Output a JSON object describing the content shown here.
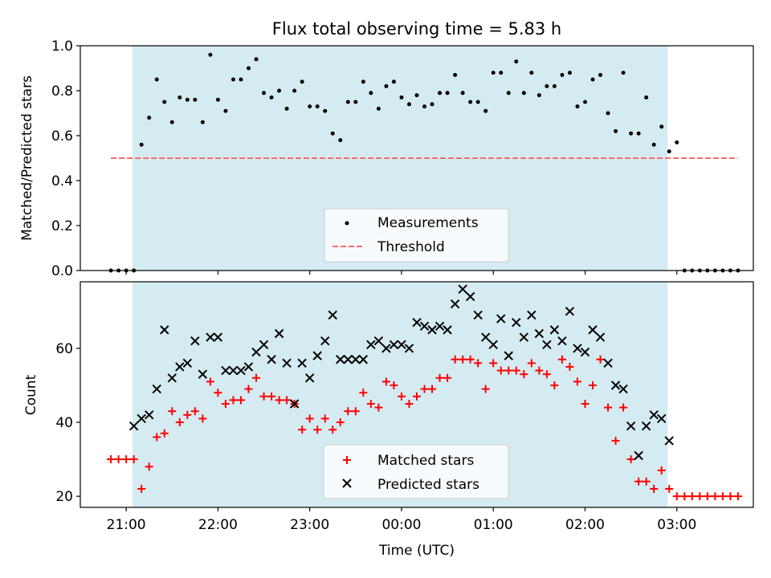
{
  "chart_data": [
    {
      "type": "scatter",
      "title": "Flux total observing time = 5.83 h",
      "ylabel": "Matched/Predicted stars",
      "xlabel": "",
      "xlim": [
        "20:30",
        "03:50"
      ],
      "ylim": [
        0,
        1.0
      ],
      "yticks": [
        "0.0",
        "0.2",
        "0.4",
        "0.6",
        "0.8",
        "1.0"
      ],
      "legend_position": "lower center",
      "observing_window": [
        "21:04",
        "02:54"
      ],
      "colors": {
        "window": "#add8e6",
        "threshold": "#ff6b6b",
        "points": "#000000"
      },
      "threshold": {
        "name": "Threshold",
        "value": 0.5,
        "x_range": [
          "20:50",
          "03:40"
        ]
      },
      "series": [
        {
          "name": "Measurements",
          "x": [
            "20:50",
            "20:55",
            "21:00",
            "21:05",
            "21:10",
            "21:15",
            "21:20",
            "21:25",
            "21:30",
            "21:35",
            "21:40",
            "21:45",
            "21:50",
            "21:55",
            "22:00",
            "22:05",
            "22:10",
            "22:15",
            "22:20",
            "22:25",
            "22:30",
            "22:35",
            "22:40",
            "22:45",
            "22:50",
            "22:55",
            "23:00",
            "23:05",
            "23:10",
            "23:15",
            "23:20",
            "23:25",
            "23:30",
            "23:35",
            "23:40",
            "23:45",
            "23:50",
            "23:55",
            "00:00",
            "00:05",
            "00:10",
            "00:15",
            "00:20",
            "00:25",
            "00:30",
            "00:35",
            "00:40",
            "00:45",
            "00:50",
            "00:55",
            "01:00",
            "01:05",
            "01:10",
            "01:15",
            "01:20",
            "01:25",
            "01:30",
            "01:35",
            "01:40",
            "01:45",
            "01:50",
            "01:55",
            "02:00",
            "02:05",
            "02:10",
            "02:15",
            "02:20",
            "02:25",
            "02:30",
            "02:35",
            "02:40",
            "02:45",
            "02:50",
            "02:55",
            "03:00",
            "03:05",
            "03:10",
            "03:15",
            "03:20",
            "03:25",
            "03:30",
            "03:35",
            "03:40"
          ],
          "y": [
            0,
            0,
            0,
            0,
            0.56,
            0.68,
            0.85,
            0.75,
            0.66,
            0.77,
            0.76,
            0.76,
            0.66,
            0.96,
            0.76,
            0.71,
            0.85,
            0.85,
            0.9,
            0.94,
            0.79,
            0.77,
            0.8,
            0.72,
            0.8,
            0.84,
            0.73,
            0.73,
            0.71,
            0.61,
            0.58,
            0.75,
            0.75,
            0.84,
            0.79,
            0.72,
            0.82,
            0.84,
            0.77,
            0.74,
            0.78,
            0.73,
            0.74,
            0.79,
            0.79,
            0.87,
            0.79,
            0.75,
            0.75,
            0.71,
            0.88,
            0.88,
            0.79,
            0.93,
            0.79,
            0.88,
            0.78,
            0.82,
            0.82,
            0.87,
            0.88,
            0.73,
            0.75,
            0.85,
            0.87,
            0.7,
            0.62,
            0.88,
            0.61,
            0.61,
            0.77,
            0.56,
            0.64,
            0.53,
            0.57,
            0,
            0,
            0,
            0,
            0,
            0,
            0,
            0
          ]
        }
      ]
    },
    {
      "type": "scatter",
      "title": "",
      "ylabel": "Count",
      "xlabel": "Time (UTC)",
      "xlim": [
        "20:30",
        "03:50"
      ],
      "ylim": [
        17,
        78
      ],
      "yticks": [
        "20",
        "40",
        "60"
      ],
      "xticks": [
        "21:00",
        "22:00",
        "23:00",
        "00:00",
        "01:00",
        "02:00",
        "03:00"
      ],
      "legend_position": "lower center",
      "observing_window": [
        "21:04",
        "02:54"
      ],
      "colors": {
        "matched": "#ff0000",
        "predicted": "#000000",
        "window": "#add8e6"
      },
      "series": [
        {
          "name": "Matched stars",
          "x": [
            "20:50",
            "20:55",
            "21:00",
            "21:05",
            "21:10",
            "21:15",
            "21:20",
            "21:25",
            "21:30",
            "21:35",
            "21:40",
            "21:45",
            "21:50",
            "21:55",
            "22:00",
            "22:05",
            "22:10",
            "22:15",
            "22:20",
            "22:25",
            "22:30",
            "22:35",
            "22:40",
            "22:45",
            "22:50",
            "22:55",
            "23:00",
            "23:05",
            "23:10",
            "23:15",
            "23:20",
            "23:25",
            "23:30",
            "23:35",
            "23:40",
            "23:45",
            "23:50",
            "23:55",
            "00:00",
            "00:05",
            "00:10",
            "00:15",
            "00:20",
            "00:25",
            "00:30",
            "00:35",
            "00:40",
            "00:45",
            "00:50",
            "00:55",
            "01:00",
            "01:05",
            "01:10",
            "01:15",
            "01:20",
            "01:25",
            "01:30",
            "01:35",
            "01:40",
            "01:45",
            "01:50",
            "01:55",
            "02:00",
            "02:05",
            "02:10",
            "02:15",
            "02:20",
            "02:25",
            "02:30",
            "02:35",
            "02:40",
            "02:45",
            "02:50",
            "02:55",
            "03:00",
            "03:05",
            "03:10",
            "03:15",
            "03:20",
            "03:25",
            "03:30",
            "03:35",
            "03:40"
          ],
          "y": [
            30,
            30,
            30,
            30,
            22,
            28,
            36,
            37,
            43,
            40,
            42,
            43,
            41,
            51,
            48,
            45,
            46,
            46,
            49,
            52,
            47,
            47,
            46,
            46,
            45,
            38,
            41,
            38,
            41,
            38,
            40,
            43,
            43,
            48,
            45,
            44,
            51,
            50,
            47,
            45,
            47,
            49,
            49,
            52,
            52,
            57,
            57,
            57,
            56,
            49,
            56,
            54,
            54,
            54,
            53,
            56,
            54,
            53,
            50,
            57,
            55,
            51,
            45,
            50,
            57,
            44,
            35,
            44,
            30,
            24,
            24,
            22,
            27,
            22,
            20,
            20,
            20,
            20,
            20,
            20,
            20,
            20,
            20
          ]
        },
        {
          "name": "Predicted stars",
          "x": [
            "21:05",
            "21:10",
            "21:15",
            "21:20",
            "21:25",
            "21:30",
            "21:35",
            "21:40",
            "21:45",
            "21:50",
            "21:55",
            "22:00",
            "22:05",
            "22:10",
            "22:15",
            "22:20",
            "22:25",
            "22:30",
            "22:35",
            "22:40",
            "22:45",
            "22:50",
            "22:55",
            "23:00",
            "23:05",
            "23:10",
            "23:15",
            "23:20",
            "23:25",
            "23:30",
            "23:35",
            "23:40",
            "23:45",
            "23:50",
            "23:55",
            "00:00",
            "00:05",
            "00:10",
            "00:15",
            "00:20",
            "00:25",
            "00:30",
            "00:35",
            "00:40",
            "00:45",
            "00:50",
            "00:55",
            "01:00",
            "01:05",
            "01:10",
            "01:15",
            "01:20",
            "01:25",
            "01:30",
            "01:35",
            "01:40",
            "01:45",
            "01:50",
            "01:55",
            "02:00",
            "02:05",
            "02:10",
            "02:15",
            "02:20",
            "02:25",
            "02:30",
            "02:35",
            "02:40",
            "02:45",
            "02:50",
            "02:55"
          ],
          "y": [
            39,
            41,
            42,
            49,
            65,
            52,
            55,
            56,
            62,
            53,
            63,
            63,
            54,
            54,
            54,
            55,
            59,
            61,
            57,
            64,
            56,
            45,
            56,
            52,
            58,
            62,
            69,
            57,
            57,
            57,
            57,
            61,
            62,
            60,
            61,
            61,
            60,
            67,
            66,
            65,
            66,
            65,
            72,
            76,
            74,
            69,
            63,
            61,
            68,
            58,
            67,
            63,
            69,
            64,
            61,
            65,
            62,
            70,
            60,
            59,
            65,
            63,
            56,
            50,
            49,
            39,
            31,
            39,
            42,
            41,
            35
          ]
        }
      ]
    }
  ]
}
